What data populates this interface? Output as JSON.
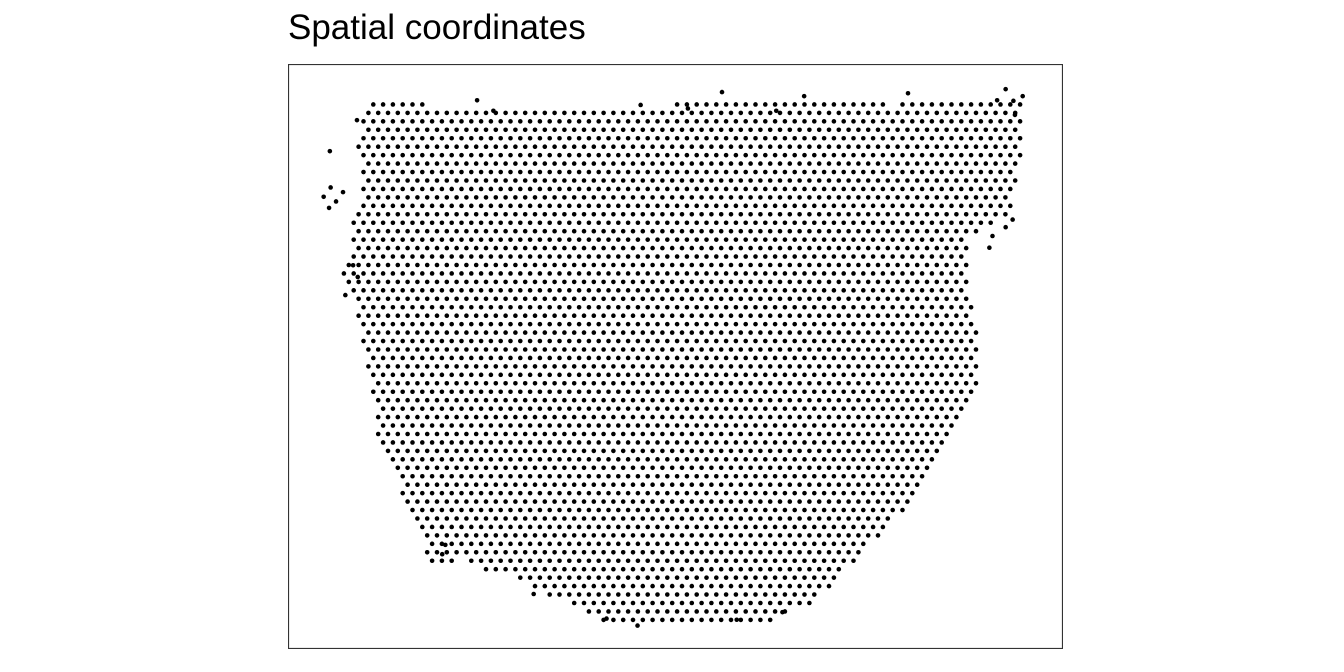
{
  "chart_data": {
    "type": "scatter",
    "title": "Spatial coordinates",
    "xlabel": "",
    "ylabel": "",
    "axes_visible": false,
    "grid": false,
    "legend": "none",
    "point_color": "#000000",
    "panel_border_color": "#333333",
    "background_color": "#ffffff",
    "grid_layout": "hexagonal",
    "xlim": [
      0,
      1
    ],
    "ylim": [
      0,
      1
    ],
    "outline": [
      [
        0.108,
        0.054
      ],
      [
        0.201,
        0.073
      ],
      [
        0.39,
        0.072
      ],
      [
        0.443,
        0.084
      ],
      [
        0.55,
        0.055
      ],
      [
        0.749,
        0.058
      ],
      [
        0.785,
        0.072
      ],
      [
        0.813,
        0.061
      ],
      [
        0.946,
        0.055
      ],
      [
        0.947,
        0.157
      ],
      [
        0.93,
        0.258
      ],
      [
        0.877,
        0.297
      ],
      [
        0.878,
        0.372
      ],
      [
        0.894,
        0.472
      ],
      [
        0.892,
        0.556
      ],
      [
        0.858,
        0.627
      ],
      [
        0.835,
        0.685
      ],
      [
        0.8,
        0.758
      ],
      [
        0.76,
        0.808
      ],
      [
        0.718,
        0.868
      ],
      [
        0.7,
        0.895
      ],
      [
        0.68,
        0.921
      ],
      [
        0.65,
        0.935
      ],
      [
        0.63,
        0.953
      ],
      [
        0.4,
        0.953
      ],
      [
        0.38,
        0.93
      ],
      [
        0.328,
        0.908
      ],
      [
        0.305,
        0.885
      ],
      [
        0.28,
        0.875
      ],
      [
        0.25,
        0.87
      ],
      [
        0.233,
        0.845
      ],
      [
        0.176,
        0.86
      ],
      [
        0.18,
        0.815
      ],
      [
        0.155,
        0.78
      ],
      [
        0.145,
        0.72
      ],
      [
        0.118,
        0.66
      ],
      [
        0.11,
        0.56
      ],
      [
        0.094,
        0.48
      ],
      [
        0.085,
        0.41
      ],
      [
        0.07,
        0.36
      ],
      [
        0.083,
        0.315
      ],
      [
        0.08,
        0.27
      ],
      [
        0.09,
        0.24
      ],
      [
        0.096,
        0.2
      ],
      [
        0.092,
        0.153
      ],
      [
        0.085,
        0.14
      ],
      [
        0.093,
        0.12
      ],
      [
        0.095,
        0.09
      ]
    ],
    "extra_points": [
      [
        0.055,
        0.211
      ],
      [
        0.046,
        0.227
      ],
      [
        0.071,
        0.219
      ],
      [
        0.062,
        0.235
      ],
      [
        0.053,
        0.246
      ],
      [
        0.926,
        0.043
      ],
      [
        0.915,
        0.062
      ],
      [
        0.936,
        0.063
      ],
      [
        0.938,
        0.087
      ],
      [
        0.948,
        0.055
      ],
      [
        0.905,
        0.314
      ],
      [
        0.909,
        0.294
      ],
      [
        0.926,
        0.279
      ],
      [
        0.935,
        0.266
      ],
      [
        0.63,
        0.08
      ],
      [
        0.666,
        0.055
      ],
      [
        0.8,
        0.05
      ],
      [
        0.56,
        0.048
      ],
      [
        0.516,
        0.076
      ],
      [
        0.455,
        0.07
      ],
      [
        0.265,
        0.08
      ],
      [
        0.244,
        0.062
      ],
      [
        0.089,
        0.096
      ],
      [
        0.054,
        0.149
      ],
      [
        0.09,
        0.364
      ],
      [
        0.084,
        0.344
      ],
      [
        0.074,
        0.395
      ],
      [
        0.203,
        0.822
      ],
      [
        0.199,
        0.838
      ],
      [
        0.317,
        0.906
      ],
      [
        0.411,
        0.948
      ],
      [
        0.451,
        0.96
      ],
      [
        0.579,
        0.95
      ],
      [
        0.638,
        0.937
      ]
    ]
  }
}
